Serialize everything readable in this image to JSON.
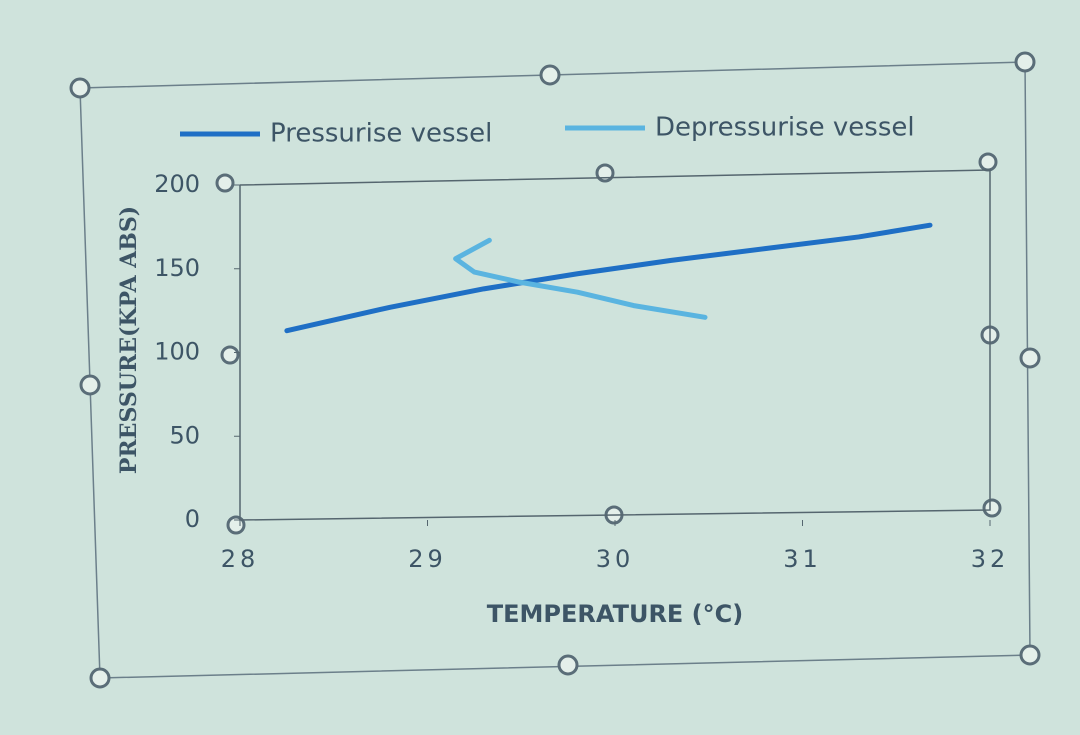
{
  "chart_data": {
    "type": "line",
    "x_label": "TEMPERATURE (°C)",
    "y_label": "PRESSURE(KPA ABS)",
    "xlim": [
      28,
      32
    ],
    "xticks": [
      28,
      29,
      30,
      31,
      32
    ],
    "ylim": [
      0,
      200
    ],
    "yticks": [
      0,
      50,
      100,
      150,
      200
    ],
    "legend": "top",
    "series": [
      {
        "name": "Pressurise vessel",
        "color": "#1f6fc5",
        "x": [
          28.25,
          28.8,
          29.3,
          29.8,
          30.3,
          30.8,
          31.3,
          31.68
        ],
        "values": [
          113,
          127,
          138,
          147,
          155,
          162,
          169,
          176
        ]
      },
      {
        "name": "Depressurise vessel",
        "color": "#5ab4e0",
        "x": [
          29.33,
          29.15,
          29.25,
          29.49,
          29.8,
          30.1,
          30.48
        ],
        "values": [
          167,
          156,
          148,
          142,
          136,
          128,
          121
        ]
      }
    ]
  }
}
